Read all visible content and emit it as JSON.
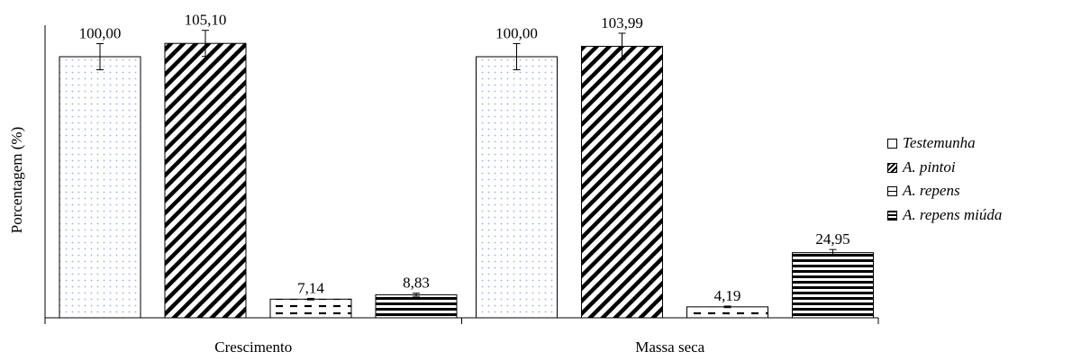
{
  "chart_data": {
    "type": "bar",
    "ylabel": "Porcentagem (%)",
    "xlabel": "",
    "categories": [
      "Crescimento",
      "Massa seca"
    ],
    "ylim": [
      0,
      110
    ],
    "series": [
      {
        "name": "Testemunha",
        "pattern": "dots",
        "values": [
          100.0,
          100.0
        ],
        "labels": [
          "100,00",
          "100,00"
        ],
        "errors": [
          5.0,
          5.0
        ]
      },
      {
        "name": "A. pintoi",
        "pattern": "diagonal",
        "values": [
          105.1,
          103.99
        ],
        "labels": [
          "105,10",
          "103,99"
        ],
        "errors": [
          5.0,
          5.0
        ]
      },
      {
        "name": "A. repens",
        "pattern": "dashes",
        "values": [
          7.14,
          4.19
        ],
        "labels": [
          "7,14",
          "4,19"
        ],
        "errors": [
          0.3,
          0.3
        ]
      },
      {
        "name": "A. repens miúda",
        "pattern": "horizontal",
        "values": [
          8.83,
          24.95
        ],
        "labels": [
          "8,83",
          "24,95"
        ],
        "errors": [
          0.6,
          1.2
        ]
      }
    ],
    "legend_position": "right",
    "grid": false
  }
}
